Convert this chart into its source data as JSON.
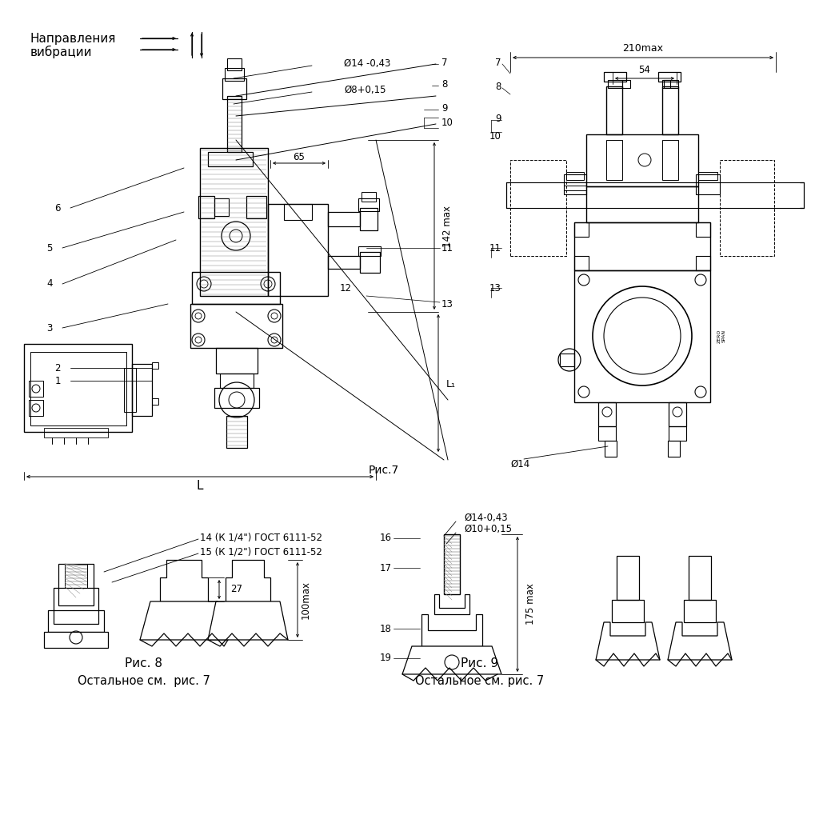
{
  "background_color": "#ffffff",
  "line_color": "#000000",
  "fig_width": 10.2,
  "fig_height": 10.24,
  "dpi": 100,
  "texts": {
    "vibration_line1": "Направления",
    "vibration_line2": "вибрации",
    "fig7": "Рис.7",
    "fig8": "Рис. 8",
    "fig8sub": "Остальное см.  рис. 7",
    "fig9": "Рис. 9",
    "fig9sub": "Остальное см. рис. 7",
    "dim_210": "210max",
    "dim_54": "54",
    "dim_65": "65",
    "dim_142": "142 max",
    "dim_L1": "L₁",
    "dim_L": "L",
    "dim_d14_top": "Ø14 -0,43",
    "dim_d8": "Ø8+0,15",
    "dim_d14_bot": "Ø14",
    "dim_d14_fig9": "Ø14-0,43",
    "dim_d10_fig9": "Ø10+0,15",
    "dim_175": "175 max",
    "dim_100": "100max",
    "dim_27": "27",
    "label_14K": "14 (К 1/4\") ГОСТ 6111-52",
    "label_15K": "15 (К 1/2\") ГОСТ 6111-52",
    "zero_span": "ZERO SPAN"
  }
}
